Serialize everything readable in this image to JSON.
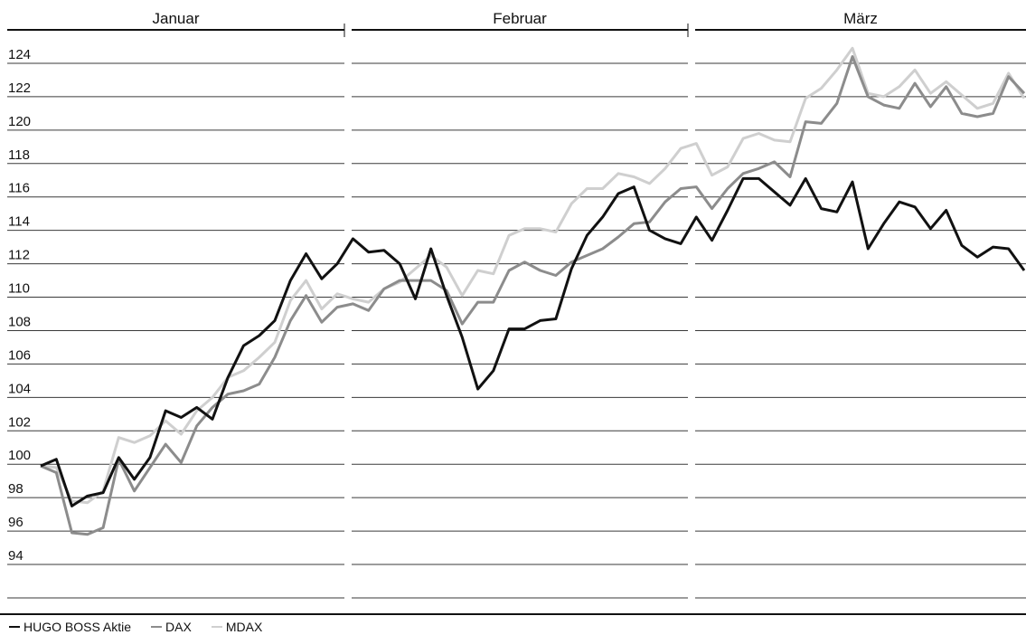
{
  "chart_data": {
    "type": "line",
    "months": [
      "Januar",
      "Februar",
      "März"
    ],
    "ylim": [
      92,
      126
    ],
    "yticks": [
      94,
      96,
      98,
      100,
      102,
      104,
      106,
      108,
      110,
      112,
      114,
      116,
      118,
      120,
      122,
      124
    ],
    "x_count": 64,
    "grid": true,
    "legend_position": "bottom-left",
    "series": [
      {
        "name": "HUGO BOSS Aktie",
        "color": "#111111",
        "values": [
          99.9,
          100.3,
          97.5,
          98.1,
          98.3,
          100.4,
          99.1,
          100.4,
          103.2,
          102.8,
          103.4,
          102.7,
          105.2,
          107.1,
          107.7,
          108.6,
          111.0,
          112.6,
          111.1,
          112.0,
          113.5,
          112.7,
          112.8,
          112.0,
          109.9,
          112.9,
          110.1,
          107.6,
          104.5,
          105.6,
          108.1,
          108.1,
          108.6,
          108.7,
          111.7,
          113.7,
          114.8,
          116.2,
          116.6,
          114.0,
          113.5,
          113.2,
          114.8,
          113.4,
          115.2,
          117.1,
          117.1,
          116.3,
          115.5,
          117.1,
          115.3,
          115.1,
          116.9,
          112.9,
          114.4,
          115.7,
          115.4,
          114.1,
          115.2,
          113.1,
          112.4,
          113.0,
          112.9,
          111.6
        ]
      },
      {
        "name": "DAX",
        "color": "#8c8c8c",
        "values": [
          99.9,
          99.5,
          95.9,
          95.8,
          96.2,
          100.3,
          98.4,
          99.8,
          101.2,
          100.1,
          102.3,
          103.4,
          104.2,
          104.4,
          104.8,
          106.4,
          108.6,
          110.1,
          108.5,
          109.4,
          109.6,
          109.2,
          110.5,
          111.0,
          111.0,
          111.0,
          110.4,
          108.4,
          109.7,
          109.7,
          111.6,
          112.1,
          111.6,
          111.3,
          112.1,
          112.5,
          112.9,
          113.6,
          114.4,
          114.5,
          115.7,
          116.5,
          116.6,
          115.3,
          116.5,
          117.4,
          117.7,
          118.1,
          117.2,
          120.5,
          120.4,
          121.6,
          124.4,
          122.0,
          121.5,
          121.3,
          122.8,
          121.4,
          122.6,
          121.0,
          120.8,
          121.0,
          123.2,
          122.2
        ]
      },
      {
        "name": "MDAX",
        "color": "#cfcfcf",
        "values": [
          99.9,
          99.8,
          97.8,
          97.7,
          98.4,
          101.6,
          101.3,
          101.7,
          102.6,
          101.8,
          103.2,
          104.0,
          105.2,
          105.6,
          106.4,
          107.3,
          109.8,
          111.0,
          109.3,
          110.2,
          109.9,
          109.7,
          110.5,
          110.9,
          111.7,
          112.5,
          111.8,
          110.1,
          111.6,
          111.4,
          113.7,
          114.1,
          114.1,
          113.9,
          115.6,
          116.5,
          116.5,
          117.4,
          117.2,
          116.8,
          117.7,
          118.9,
          119.2,
          117.3,
          117.8,
          119.5,
          119.8,
          119.4,
          119.3,
          121.9,
          122.5,
          123.6,
          124.9,
          122.2,
          122.0,
          122.6,
          123.6,
          122.2,
          122.9,
          122.1,
          121.3,
          121.6,
          123.4,
          121.9
        ]
      }
    ]
  }
}
